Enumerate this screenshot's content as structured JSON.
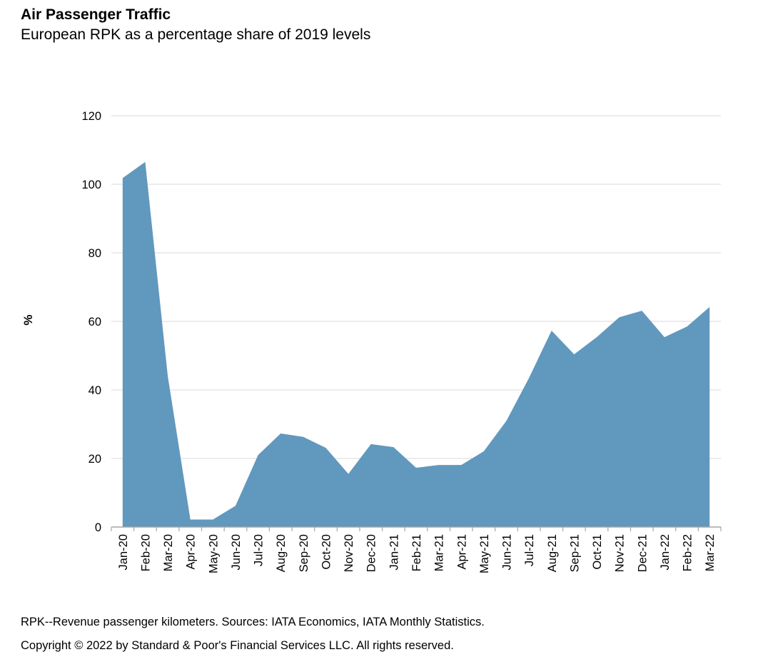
{
  "header": {
    "title": "Air Passenger Traffic",
    "subtitle": "European RPK as a percentage share of 2019 levels"
  },
  "footer": {
    "note": "RPK--Revenue passenger kilometers. Sources: IATA Economics, IATA Monthly Statistics.",
    "copyright": "Copyright © 2022 by Standard & Poor's Financial Services LLC. All rights reserved."
  },
  "chart_data": {
    "type": "area",
    "title": "Air Passenger Traffic",
    "subtitle": "European RPK as a percentage share of 2019 levels",
    "xlabel": "",
    "ylabel": "%",
    "ylim": [
      0,
      120
    ],
    "yticks": [
      0,
      20,
      40,
      60,
      80,
      100,
      120
    ],
    "grid": true,
    "legend": "none",
    "fill_color": "#6198BD",
    "categories": [
      "Jan-20",
      "Feb-20",
      "Mar-20",
      "Apr-20",
      "May-20",
      "Jun-20",
      "Jul-20",
      "Aug-20",
      "Sep-20",
      "Oct-20",
      "Nov-20",
      "Dec-20",
      "Jan-21",
      "Feb-21",
      "Mar-21",
      "Apr-21",
      "May-21",
      "Jun-21",
      "Jul-21",
      "Aug-21",
      "Sep-21",
      "Oct-21",
      "Nov-21",
      "Dec-21",
      "Jan-22",
      "Feb-22",
      "Mar-22"
    ],
    "series": [
      {
        "name": "European RPK (% of 2019)",
        "values": [
          101.8,
          106.5,
          44.0,
          2.2,
          2.2,
          6.2,
          21.0,
          27.3,
          26.3,
          23.1,
          15.5,
          24.2,
          23.3,
          17.3,
          18.1,
          18.1,
          22.1,
          31.0,
          43.5,
          57.3,
          50.4,
          55.4,
          61.2,
          63.1,
          55.4,
          58.5,
          64.2
        ]
      }
    ]
  }
}
